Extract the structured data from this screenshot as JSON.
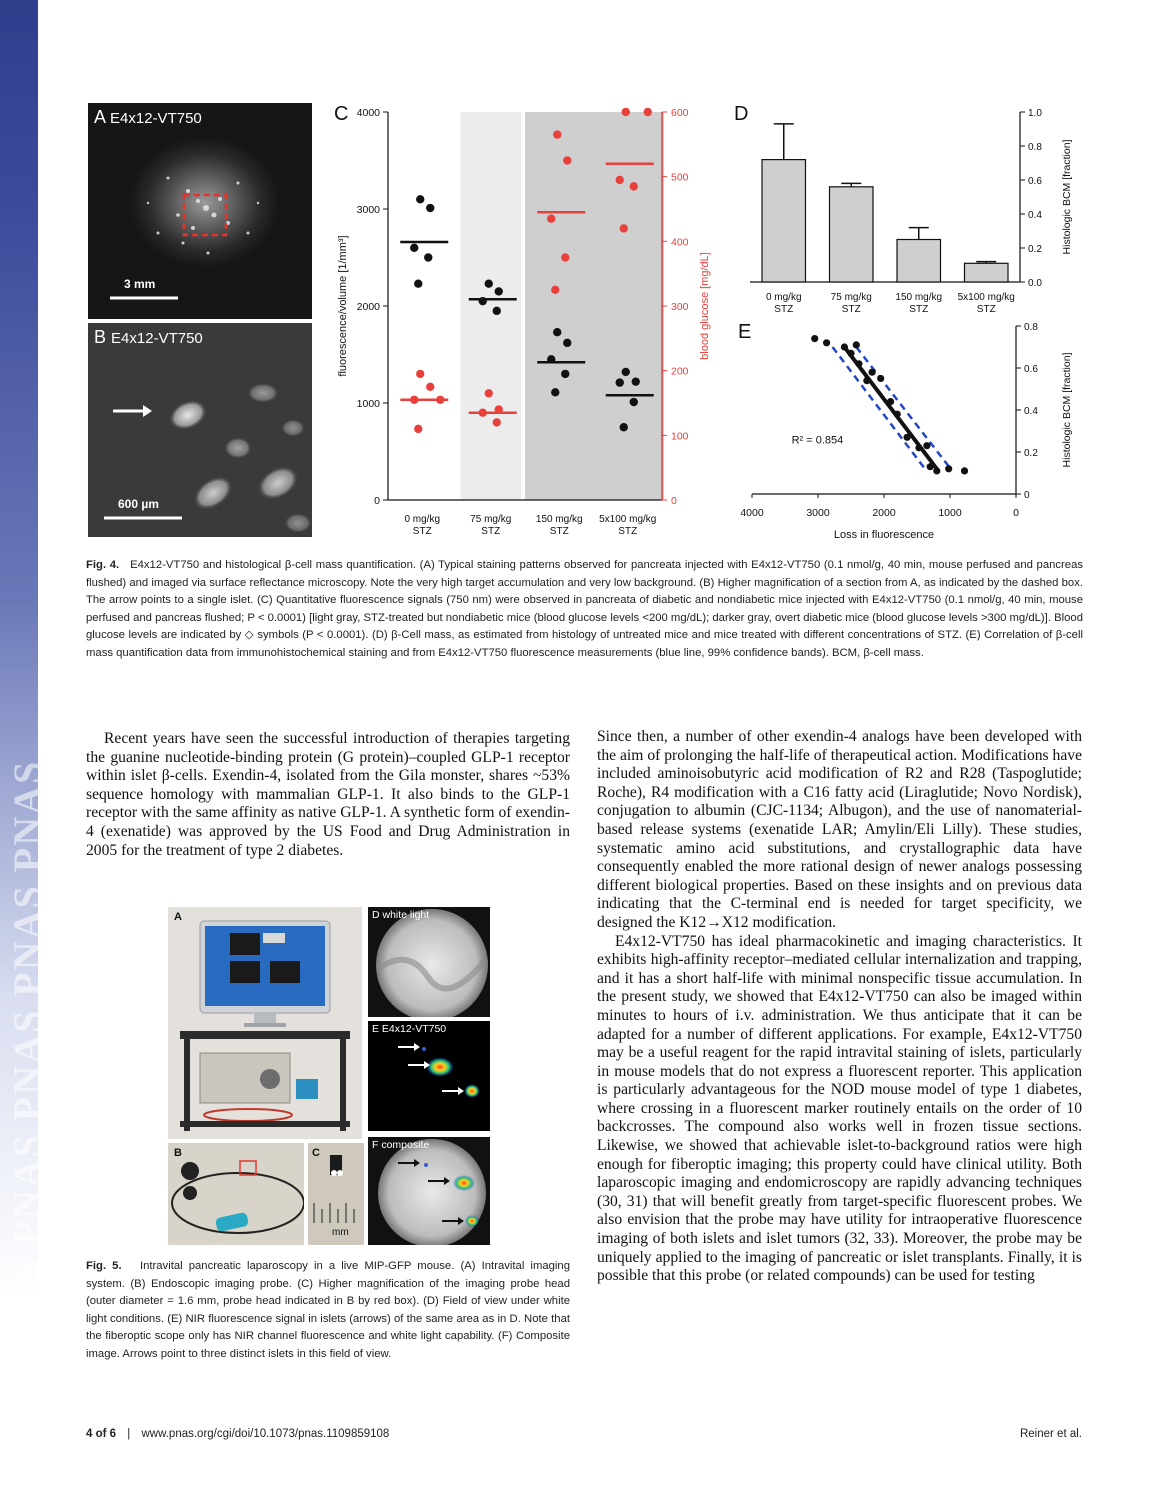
{
  "sidebar": {
    "brand": "PNAS PNAS PNAS PNAS PNAS"
  },
  "figure4": {
    "panelA": {
      "letter": "A",
      "label": "E4x12-VT750",
      "scale": "3 mm"
    },
    "panelB": {
      "letter": "B",
      "label": "E4x12-VT750",
      "scale": "600 µm"
    },
    "caption": {
      "label": "Fig. 4.",
      "text": "E4x12-VT750 and histological β-cell mass quantification. (A) Typical staining patterns observed for pancreata injected with E4x12-VT750 (0.1 nmol/g, 40 min, mouse perfused and pancreas flushed) and imaged via surface reflectance microscopy. Note the very high target accumulation and very low background. (B) Higher magnification of a section from A, as indicated by the dashed box. The arrow points to a single islet. (C) Quantitative fluorescence signals (750 nm) were observed in pancreata of diabetic and nondiabetic mice injected with E4x12-VT750 (0.1 nmol/g, 40 min, mouse perfused and pancreas flushed; P < 0.0001) [light gray, STZ-treated but nondiabetic mice (blood glucose levels <200 mg/dL); darker gray, overt diabetic mice (blood glucose levels >300 mg/dL)]. Blood glucose levels are indicated by ◇ symbols (P < 0.0001). (D) β-Cell mass, as estimated from histology of untreated mice and mice treated with different concentrations of STZ. (E) Correlation of β-cell mass quantification data from immunohistochemical staining and from E4x12-VT750 fluorescence measurements (blue line, 99% confidence bands). BCM, β-cell mass."
    }
  },
  "chart_data": [
    {
      "id": "C",
      "type": "scatter",
      "panel": "C",
      "categories": [
        "0 mg/kg STZ",
        "75 mg/kg STZ",
        "150 mg/kg STZ",
        "5x100 mg/kg STZ"
      ],
      "ylabel": "fluorescence/volume [1/mm³]",
      "ylim": [
        0,
        4000
      ],
      "yticks": [
        0,
        1000,
        2000,
        3000,
        4000
      ],
      "y2label": "blood glucose [mg/dL]",
      "y2lim": [
        0,
        600
      ],
      "y2ticks": [
        0,
        100,
        200,
        300,
        400,
        500,
        600
      ],
      "shading": {
        "light": [
          1
        ],
        "dark": [
          2,
          3
        ]
      },
      "series": [
        {
          "axis": "left",
          "color": "#111111",
          "points": [
            {
              "cat": 0,
              "y": 3100
            },
            {
              "cat": 0,
              "y": 3010
            },
            {
              "cat": 0,
              "y": 2600
            },
            {
              "cat": 0,
              "y": 2500
            },
            {
              "cat": 0,
              "y": 2230
            },
            {
              "cat": 1,
              "y": 2230
            },
            {
              "cat": 1,
              "y": 2150
            },
            {
              "cat": 1,
              "y": 2050
            },
            {
              "cat": 1,
              "y": 1950
            },
            {
              "cat": 2,
              "y": 1730
            },
            {
              "cat": 2,
              "y": 1620
            },
            {
              "cat": 2,
              "y": 1450
            },
            {
              "cat": 2,
              "y": 1300
            },
            {
              "cat": 2,
              "y": 1110
            },
            {
              "cat": 3,
              "y": 1320
            },
            {
              "cat": 3,
              "y": 1220
            },
            {
              "cat": 3,
              "y": 1210
            },
            {
              "cat": 3,
              "y": 1010
            },
            {
              "cat": 3,
              "y": 750
            }
          ],
          "means": [
            2660,
            2070,
            1420,
            1080
          ]
        },
        {
          "axis": "right",
          "color": "#e8413c",
          "points": [
            {
              "cat": 0,
              "y": 195
            },
            {
              "cat": 0,
              "y": 175
            },
            {
              "cat": 0,
              "y": 155
            },
            {
              "cat": 0,
              "y": 155
            },
            {
              "cat": 0,
              "y": 110
            },
            {
              "cat": 1,
              "y": 165
            },
            {
              "cat": 1,
              "y": 140
            },
            {
              "cat": 1,
              "y": 135
            },
            {
              "cat": 1,
              "y": 120
            },
            {
              "cat": 2,
              "y": 565
            },
            {
              "cat": 2,
              "y": 525
            },
            {
              "cat": 2,
              "y": 435
            },
            {
              "cat": 2,
              "y": 375
            },
            {
              "cat": 2,
              "y": 325
            },
            {
              "cat": 3,
              "y": 600
            },
            {
              "cat": 3,
              "y": 600
            },
            {
              "cat": 3,
              "y": 495
            },
            {
              "cat": 3,
              "y": 485
            },
            {
              "cat": 3,
              "y": 420
            }
          ],
          "means": [
            155,
            135,
            445,
            520
          ]
        }
      ]
    },
    {
      "id": "D",
      "type": "bar",
      "panel": "D",
      "categories": [
        "0 mg/kg STZ",
        "75 mg/kg STZ",
        "150 mg/kg STZ",
        "5x100 mg/kg STZ"
      ],
      "values": [
        0.72,
        0.56,
        0.25,
        0.11
      ],
      "errors": [
        0.21,
        0.02,
        0.07,
        0.01
      ],
      "ylabel": "Histologic BCM [fraction]",
      "ylim": [
        0,
        1.0
      ],
      "yticks": [
        0,
        0.2,
        0.4,
        0.6,
        0.8,
        1.0
      ]
    },
    {
      "id": "E",
      "type": "scatter",
      "panel": "E",
      "xlabel": "Loss in fluorescence",
      "xlim": [
        4000,
        0
      ],
      "xticks": [
        4000,
        3000,
        2000,
        1000,
        0
      ],
      "ylabel": "Histologic BCM [fraction]",
      "ylim": [
        0,
        0.8
      ],
      "yticks": [
        0.2,
        0.4,
        0.6,
        0.8
      ],
      "annotation": "R² = 0.854",
      "points": [
        {
          "x": 3050,
          "y": 0.74
        },
        {
          "x": 2870,
          "y": 0.72
        },
        {
          "x": 2600,
          "y": 0.7
        },
        {
          "x": 2420,
          "y": 0.71
        },
        {
          "x": 2500,
          "y": 0.67
        },
        {
          "x": 2380,
          "y": 0.62
        },
        {
          "x": 2180,
          "y": 0.58
        },
        {
          "x": 2050,
          "y": 0.55
        },
        {
          "x": 2260,
          "y": 0.54
        },
        {
          "x": 1900,
          "y": 0.44
        },
        {
          "x": 1800,
          "y": 0.38
        },
        {
          "x": 1650,
          "y": 0.27
        },
        {
          "x": 1470,
          "y": 0.22
        },
        {
          "x": 1350,
          "y": 0.23
        },
        {
          "x": 1300,
          "y": 0.13
        },
        {
          "x": 1200,
          "y": 0.11
        },
        {
          "x": 1020,
          "y": 0.12
        },
        {
          "x": 780,
          "y": 0.11
        }
      ],
      "fit": [
        [
          2600,
          0.7
        ],
        [
          1200,
          0.12
        ]
      ],
      "bands": [
        [
          [
            2780,
            0.7
          ],
          [
            1380,
            0.12
          ]
        ],
        [
          [
            2420,
            0.7
          ],
          [
            990,
            0.12
          ]
        ]
      ]
    }
  ],
  "figure5": {
    "panels": {
      "A": "A",
      "B": "B",
      "C": "C",
      "D": "D white light",
      "E": "E E4x12-VT750",
      "F": "F composite",
      "ruler": "mm"
    },
    "caption": {
      "label": "Fig. 5.",
      "text": "Intravital pancreatic laparoscopy in a live MIP-GFP mouse. (A) Intravital imaging system. (B) Endoscopic imaging probe. (C) Higher magnification of the imaging probe head (outer diameter = 1.6 mm, probe head indicated in B by red box). (D) Field of view under white light conditions. (E) NIR fluorescence signal in islets (arrows) of the same area as in D. Note that the fiberoptic scope only has NIR channel fluorescence and white light capability. (F) Composite image. Arrows point to three distinct islets in this field of view."
    }
  },
  "left_text": "Recent years have seen the successful introduction of therapies targeting the guanine nucleotide-binding protein (G protein)–coupled GLP-1 receptor within islet β-cells. Exendin-4, isolated from the Gila monster, shares ~53% sequence homology with mammalian GLP-1. It also binds to the GLP-1 receptor with the same affinity as native GLP-1. A synthetic form of exendin-4 (exenatide) was approved by the US Food and Drug Administration in 2005 for the treatment of type 2 diabetes.",
  "right_text": {
    "p1": "Since then, a number of other exendin-4 analogs have been developed with the aim of prolonging the half-life of therapeutical action. Modifications have included aminoisobutyric acid modification of R2 and R28 (Taspoglutide; Roche), R4 modification with a C16 fatty acid (Liraglutide; Novo Nordisk), conjugation to albumin (CJC-1134; Albugon), and the use of nanomaterial-based release systems (exenatide LAR; Amylin/Eli Lilly). These studies, systematic amino acid substitutions, and crystallographic data have consequently enabled the more rational design of newer analogs possessing different biological properties. Based on these insights and on previous data indicating that the C-terminal end is needed for target specificity, we designed the K12→X12 modification.",
    "p2": "E4x12-VT750 has ideal pharmacokinetic and imaging characteristics. It exhibits high-affinity receptor–mediated cellular internalization and trapping, and it has a short half-life with minimal nonspecific tissue accumulation. In the present study, we showed that E4x12-VT750 can also be imaged within minutes to hours of i.v. administration. We thus anticipate that it can be adapted for a number of different applications. For example, E4x12-VT750 may be a useful reagent for the rapid intravital staining of islets, particularly in mouse models that do not express a fluorescent reporter. This application is particularly advantageous for the NOD mouse model of type 1 diabetes, where crossing in a fluorescent marker routinely entails on the order of 10 backcrosses. The compound also works well in frozen tissue sections. Likewise, we showed that achievable islet-to-background ratios were high enough for fiberoptic imaging; this property could have clinical utility. Both laparoscopic imaging and endomicroscopy are rapidly advancing techniques (30, 31) that will benefit greatly from target-specific fluorescent probes. We also envision that the probe may have utility for intraoperative fluorescence imaging of both islets and islet tumors (32, 33). Moreover, the probe may be uniquely applied to the imaging of pancreatic or islet transplants. Finally, it is possible that this probe (or related compounds) can be used for testing"
  },
  "footer": {
    "page": "4 of 6",
    "sep": "|",
    "url": "www.pnas.org/cgi/doi/10.1073/pnas.1109859108",
    "author": "Reiner et al."
  }
}
